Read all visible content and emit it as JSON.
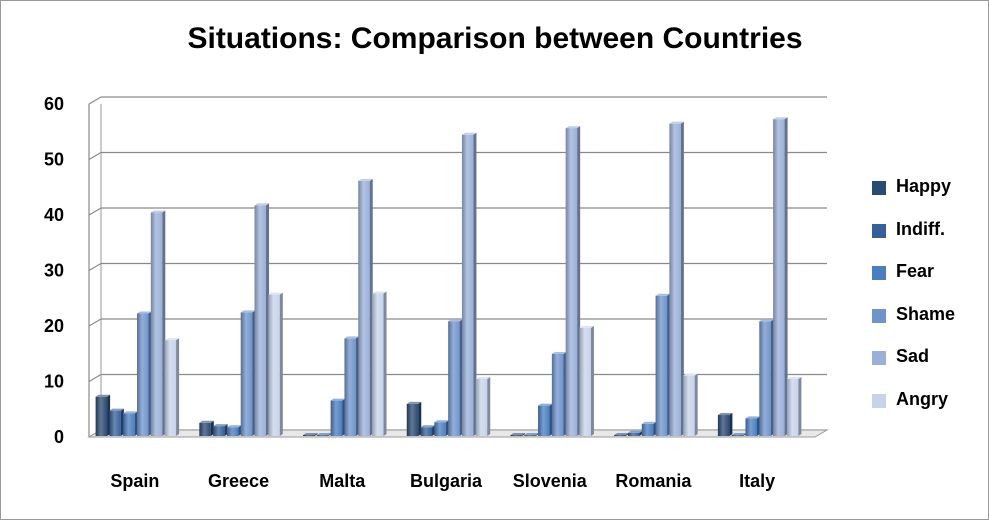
{
  "chart_data": {
    "type": "bar",
    "title": "Situations: Comparison between Countries",
    "xlabel": "",
    "ylabel": "",
    "ylim": [
      0,
      60
    ],
    "yticks": [
      0,
      10,
      20,
      30,
      40,
      50,
      60
    ],
    "grid": true,
    "legend_position": "right",
    "categories": [
      "Spain",
      "Greece",
      "Malta",
      "Bulgaria",
      "Slovenia",
      "Romania",
      "Italy"
    ],
    "series": [
      {
        "name": "Happy",
        "color": "#2b4a73",
        "values": [
          7.8,
          3.1,
          0.1,
          6.5,
          0.8,
          0.8,
          4.5
        ]
      },
      {
        "name": "Indiff.",
        "color": "#36609a",
        "values": [
          5.3,
          2.5,
          0.6,
          2.3,
          0.4,
          1.3,
          0.7
        ]
      },
      {
        "name": "Fear",
        "color": "#4a7ec0",
        "values": [
          4.8,
          2.3,
          7.1,
          3.2,
          6.2,
          2.9,
          3.9
        ]
      },
      {
        "name": "Shame",
        "color": "#6f94cc",
        "values": [
          22.8,
          23.0,
          18.3,
          21.4,
          15.5,
          26.0,
          21.4
        ]
      },
      {
        "name": "Sad",
        "color": "#9ab0d8",
        "values": [
          41.0,
          42.3,
          46.7,
          55.0,
          56.2,
          57.0,
          57.8
        ]
      },
      {
        "name": "Angry",
        "color": "#c6d3ea",
        "values": [
          18.0,
          26.2,
          26.4,
          11.0,
          20.2,
          11.6,
          11.0
        ]
      }
    ]
  }
}
